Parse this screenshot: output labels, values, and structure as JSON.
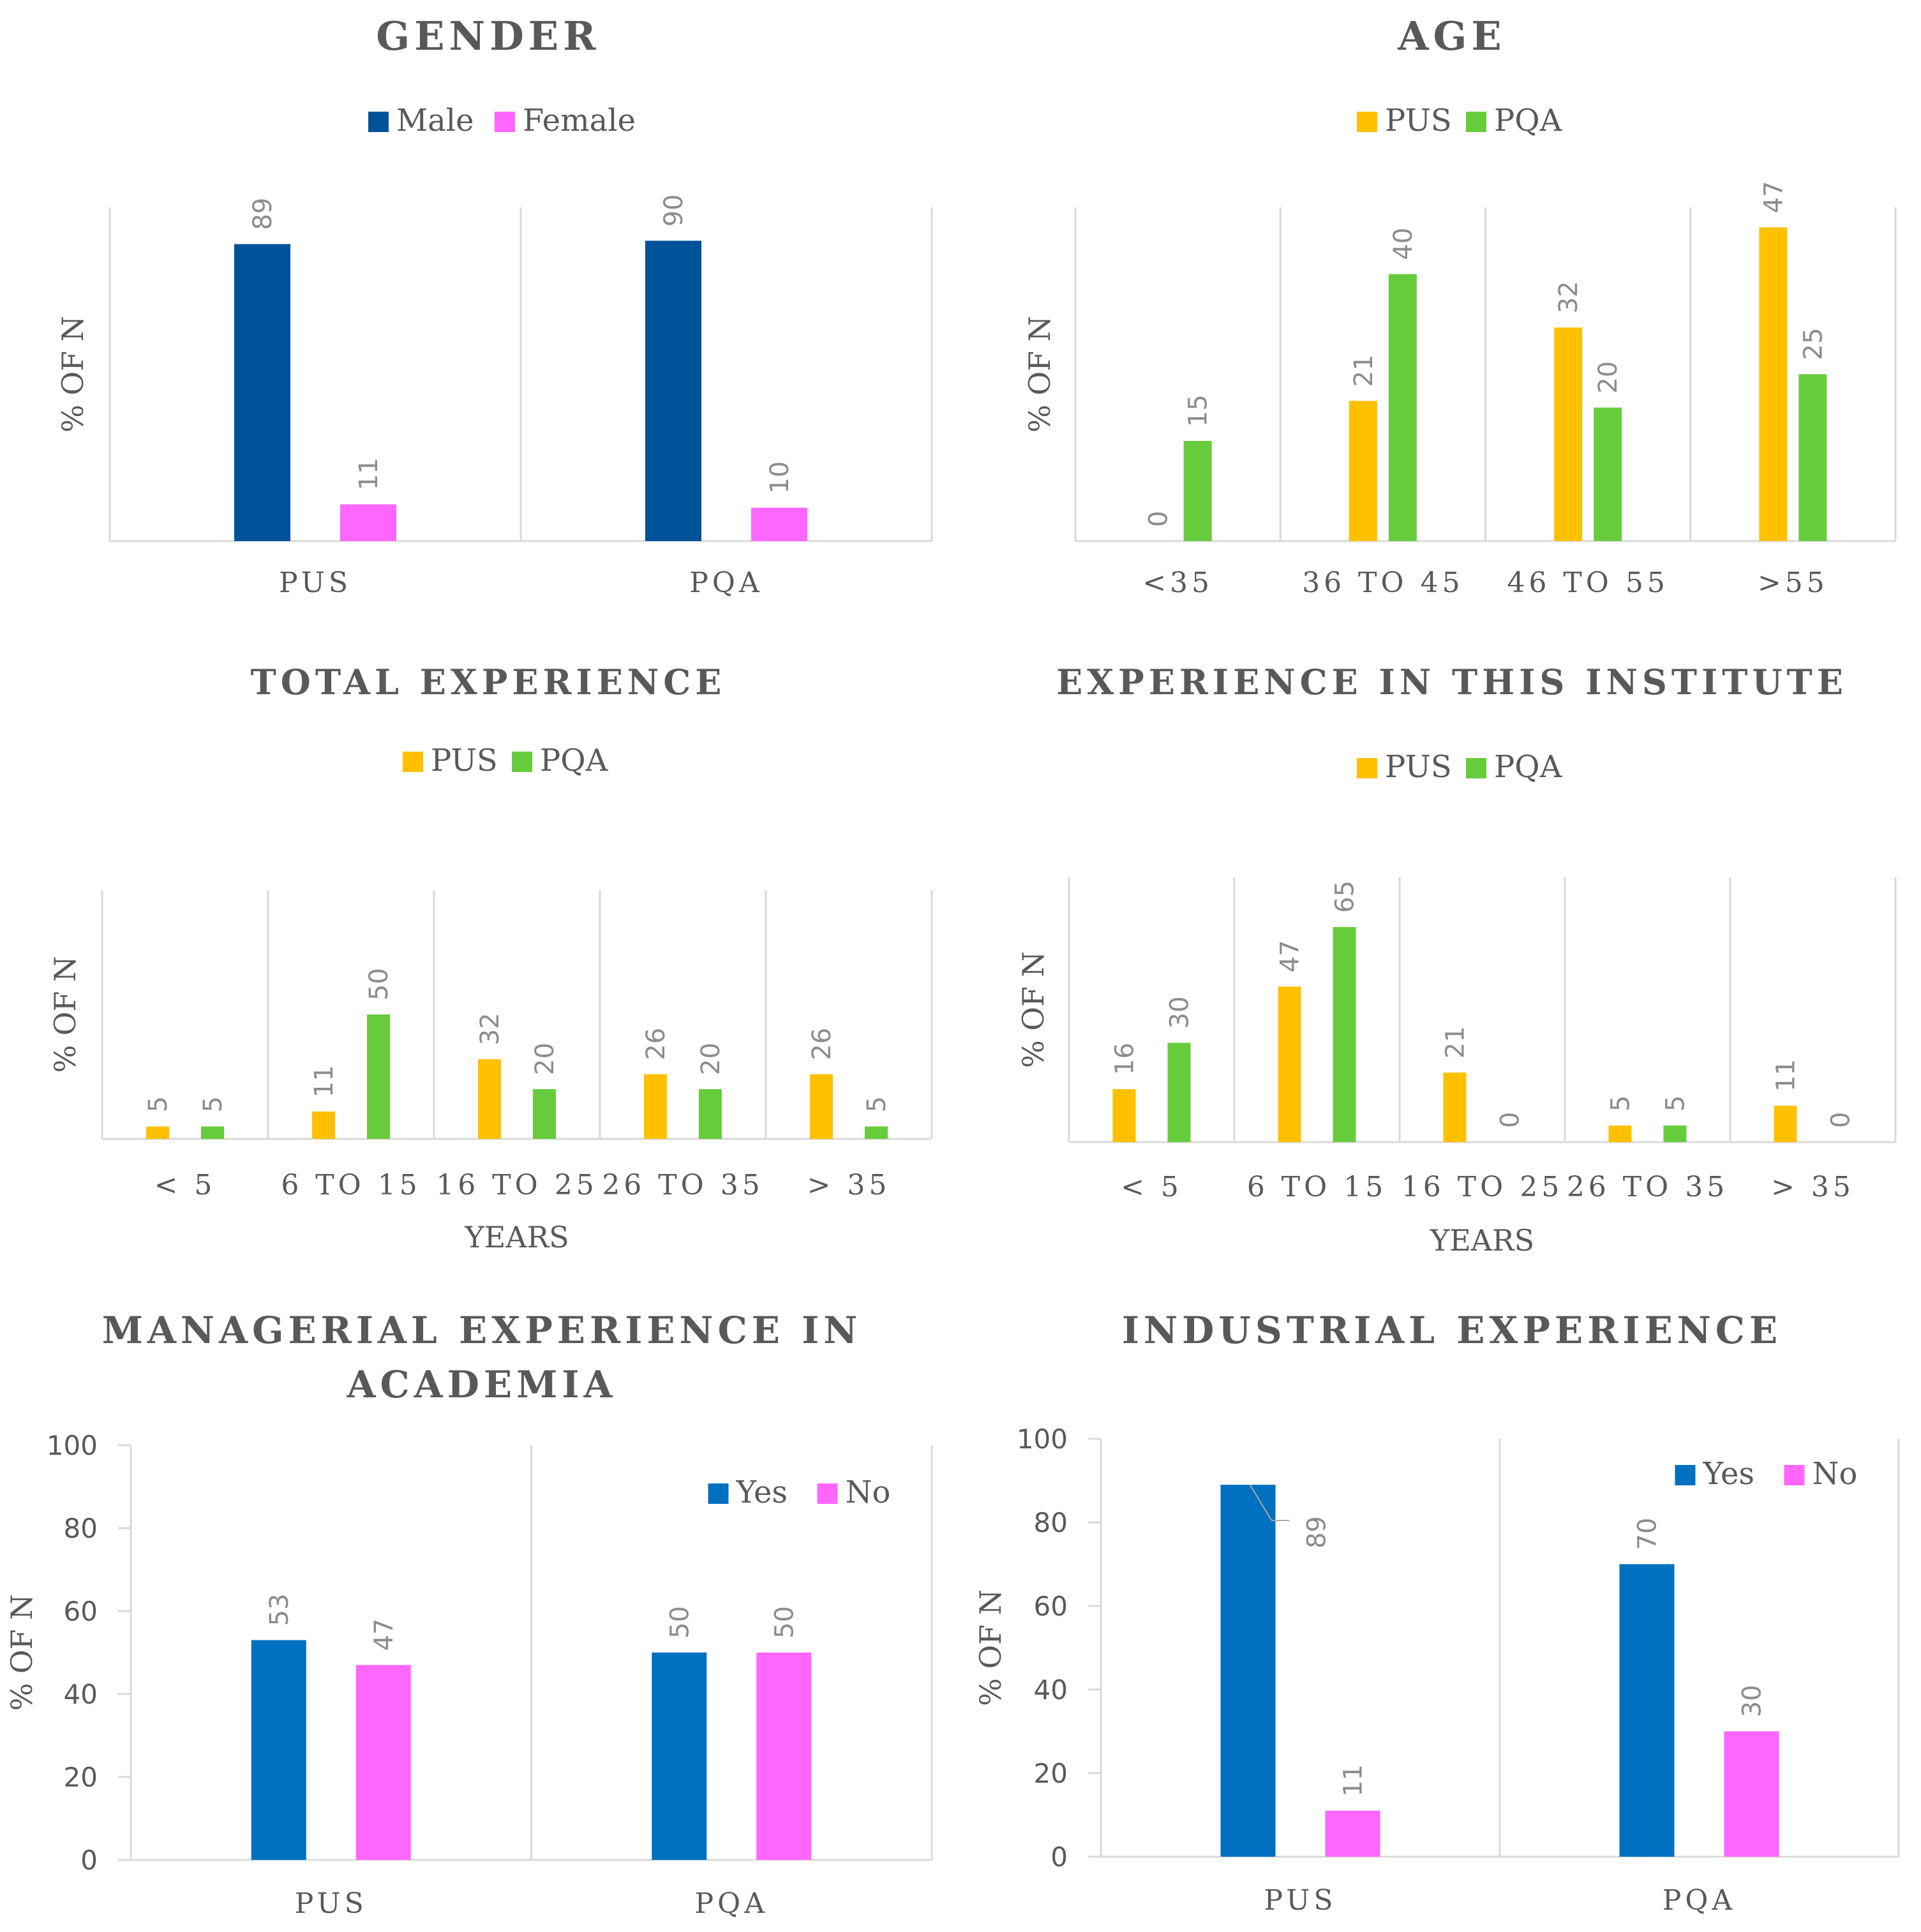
{
  "chart_data": [
    {
      "id": "gender",
      "type": "bar",
      "title": "GENDER",
      "title_lines": [
        "GENDER"
      ],
      "ylabel": "% OF N",
      "xlabel": "",
      "categories": [
        "PUS",
        "PQA"
      ],
      "series": [
        {
          "name": "Male",
          "color": "#00529b",
          "values": [
            89,
            90
          ]
        },
        {
          "name": "Female",
          "color": "#ff66ff",
          "values": [
            11,
            10
          ]
        }
      ],
      "ylim": [
        0,
        100
      ],
      "legend": "top",
      "show_y_axis": false
    },
    {
      "id": "age",
      "type": "bar",
      "title": "AGE",
      "title_lines": [
        "AGE"
      ],
      "ylabel": "% OF N",
      "xlabel": "",
      "categories": [
        "<35",
        "36 TO 45",
        "46 TO 55",
        ">55"
      ],
      "series": [
        {
          "name": "PUS",
          "color": "#ffc000",
          "values": [
            0,
            21,
            32,
            47
          ]
        },
        {
          "name": "PQA",
          "color": "#66cc3c",
          "values": [
            15,
            40,
            20,
            25
          ]
        }
      ],
      "ylim": [
        0,
        50
      ],
      "legend": "top",
      "show_y_axis": false
    },
    {
      "id": "total_experience",
      "type": "bar",
      "title": "TOTAL EXPERIENCE",
      "title_lines": [
        "TOTAL EXPERIENCE"
      ],
      "ylabel": "% OF N",
      "xlabel": "YEARS",
      "categories": [
        "< 5",
        "6 TO 15",
        "16 TO 25",
        "26 TO 35",
        "> 35"
      ],
      "series": [
        {
          "name": "PUS",
          "color": "#ffc000",
          "values": [
            5,
            11,
            32,
            26,
            26
          ]
        },
        {
          "name": "PQA",
          "color": "#66cc3c",
          "values": [
            5,
            50,
            20,
            20,
            5
          ]
        }
      ],
      "ylim": [
        0,
        100
      ],
      "legend": "top",
      "show_y_axis": false
    },
    {
      "id": "experience_institute",
      "type": "bar",
      "title": "EXPERIENCE IN THIS INSTITUTE",
      "title_lines": [
        "EXPERIENCE IN THIS INSTITUTE"
      ],
      "ylabel": "% OF N",
      "xlabel": "YEARS",
      "categories": [
        "< 5",
        "6 TO 15",
        "16 TO 25",
        "26 TO 35",
        "> 35"
      ],
      "series": [
        {
          "name": "PUS",
          "color": "#ffc000",
          "values": [
            16,
            47,
            21,
            5,
            11
          ]
        },
        {
          "name": "PQA",
          "color": "#66cc3c",
          "values": [
            30,
            65,
            0,
            5,
            0
          ]
        }
      ],
      "ylim": [
        0,
        80
      ],
      "legend": "top",
      "show_y_axis": false
    },
    {
      "id": "managerial_experience",
      "type": "bar",
      "title": "MANAGERIAL EXPERIENCE IN ACADEMIA",
      "title_lines": [
        "MANAGERIAL EXPERIENCE IN",
        "ACADEMIA"
      ],
      "ylabel": "% OF N",
      "xlabel": "",
      "categories": [
        "PUS",
        "PQA"
      ],
      "series": [
        {
          "name": "Yes",
          "color": "#0070c0",
          "values": [
            53,
            50
          ]
        },
        {
          "name": "No",
          "color": "#ff66ff",
          "values": [
            47,
            50
          ]
        }
      ],
      "ylim": [
        0,
        100
      ],
      "yticks": [
        "0",
        "20",
        "40",
        "60",
        "80",
        "100"
      ],
      "legend": "top-right",
      "show_y_axis": true
    },
    {
      "id": "industrial_experience",
      "type": "bar",
      "title": "INDUSTRIAL EXPERIENCE",
      "title_lines": [
        "INDUSTRIAL EXPERIENCE"
      ],
      "ylabel": "% OF N",
      "xlabel": "",
      "categories": [
        "PUS",
        "PQA"
      ],
      "series": [
        {
          "name": "Yes",
          "color": "#0070c0",
          "values": [
            89,
            70
          ]
        },
        {
          "name": "No",
          "color": "#ff66ff",
          "values": [
            11,
            30
          ]
        }
      ],
      "ylim": [
        0,
        100
      ],
      "yticks": [
        "0",
        "20",
        "40",
        "60",
        "80",
        "100"
      ],
      "legend": "top-right",
      "show_y_axis": true
    }
  ]
}
